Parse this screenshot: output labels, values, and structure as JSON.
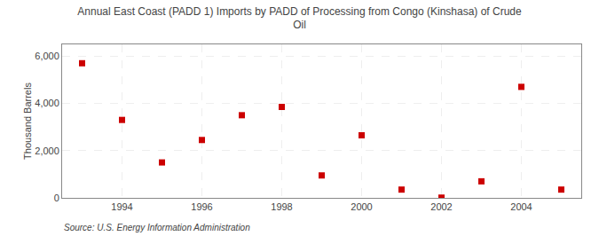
{
  "chart_data": {
    "type": "scatter",
    "title": "Annual East Coast (PADD 1) Imports by PADD of Processing from Congo (Kinshasa) of Crude\nOil",
    "ylabel": "Thousand Barrels",
    "source": "Source: U.S. Energy Information Administration",
    "x": [
      1993,
      1994,
      1995,
      1996,
      1997,
      1998,
      1999,
      2000,
      2001,
      2002,
      2003,
      2004,
      2005
    ],
    "values": [
      5700,
      3300,
      1500,
      2450,
      3500,
      3850,
      950,
      2650,
      350,
      10,
      700,
      4700,
      350
    ],
    "color": "#cc0000",
    "marker": "square",
    "xlim": [
      1992.5,
      2005.5
    ],
    "xticks": [
      1994,
      1996,
      1998,
      2000,
      2002,
      2004
    ],
    "ylim": [
      0,
      6500
    ],
    "yticks": [
      0,
      {
        "value": 2000,
        "label": "2,000"
      },
      {
        "value": 4000,
        "label": "4,000"
      },
      {
        "value": 6000,
        "label": "6,000"
      }
    ],
    "grid": true
  }
}
